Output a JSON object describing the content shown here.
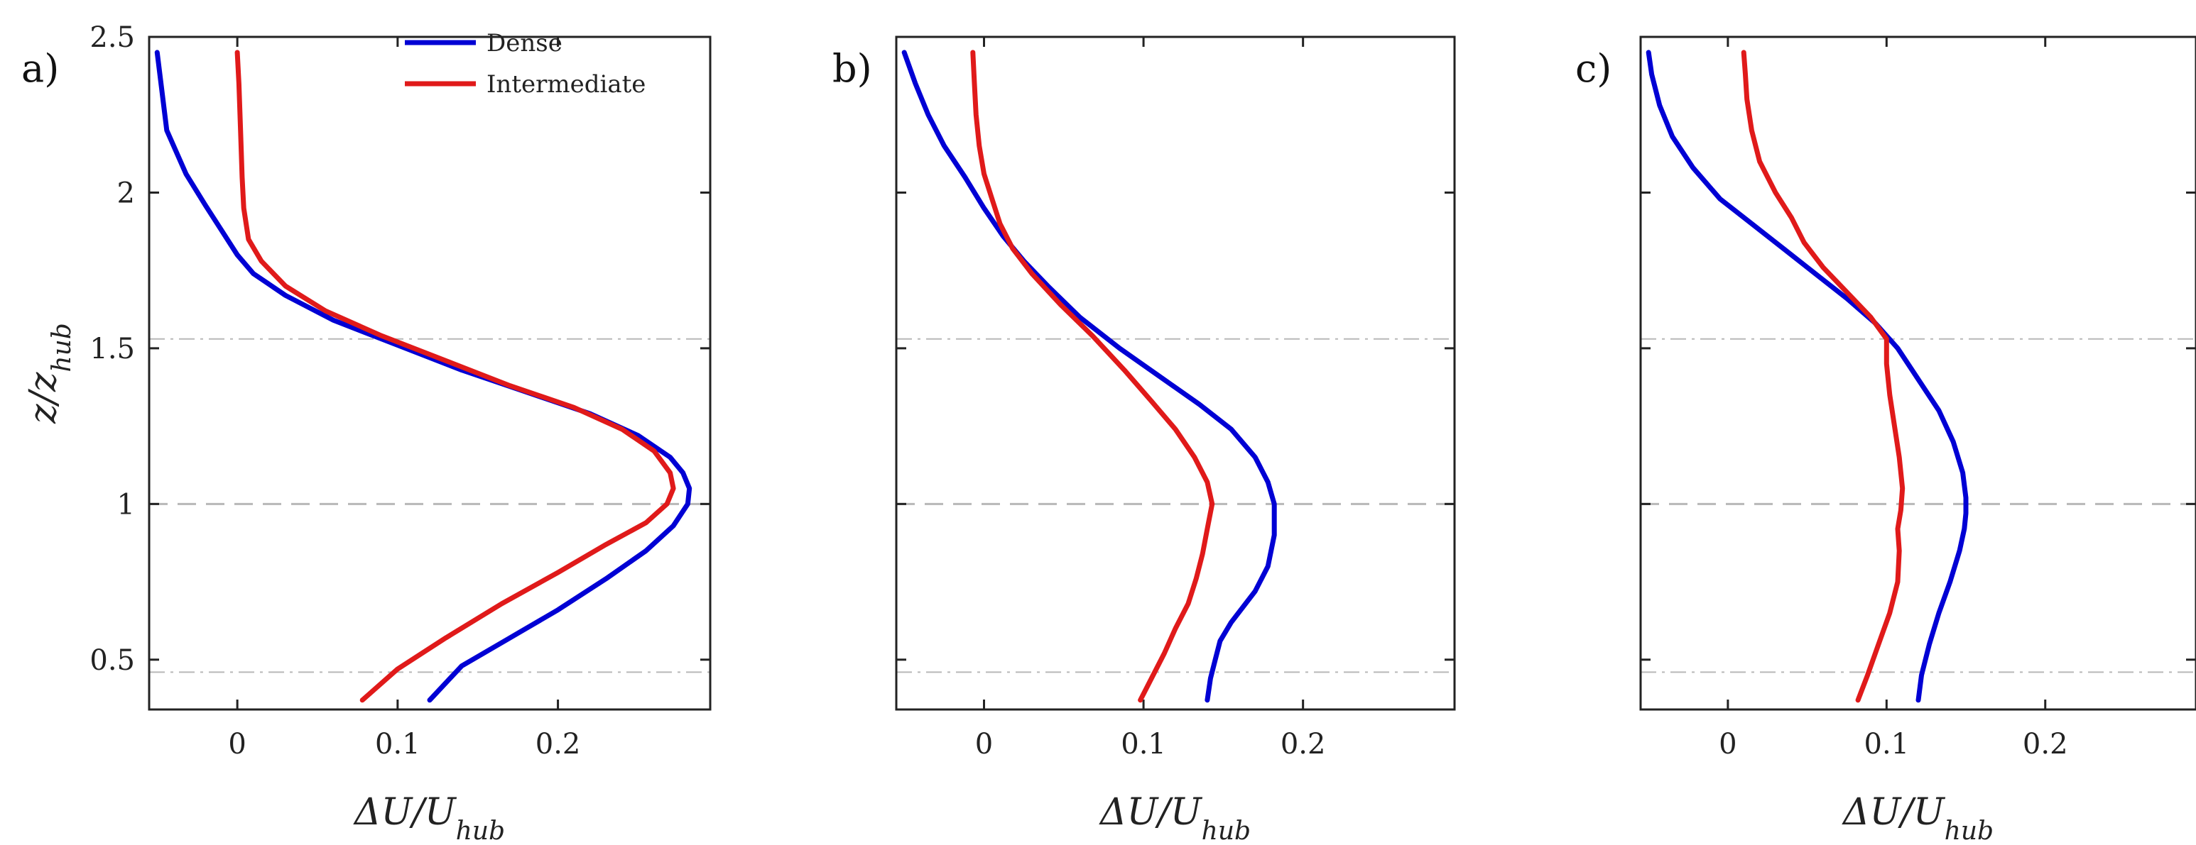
{
  "chart_data": [
    {
      "type": "line",
      "panel_label": "a)",
      "xlabel": "ΔU/U_hub",
      "ylabel": "z/z_hub",
      "xlim": [
        -0.055,
        0.295
      ],
      "ylim": [
        0.34,
        2.5
      ],
      "xticks": [
        0,
        0.1,
        0.2
      ],
      "xtick_labels": [
        "0",
        "0.1",
        "0.2"
      ],
      "yticks": [
        0.5,
        1,
        1.5,
        2,
        2.5
      ],
      "ytick_labels": [
        "0.5",
        "1",
        "1.5",
        "2",
        "2.5"
      ],
      "reference_lines": [
        {
          "y": 0.46,
          "style": "dash-dot"
        },
        {
          "y": 1.0,
          "style": "dashed"
        },
        {
          "y": 1.53,
          "style": "dash-dot"
        }
      ],
      "legend": {
        "entries": [
          "Dense",
          "Intermediate"
        ],
        "location": "top-right"
      },
      "series": [
        {
          "name": "Dense",
          "color": "#0000d4",
          "x": [
            0.12,
            0.14,
            0.17,
            0.2,
            0.23,
            0.255,
            0.272,
            0.281,
            0.282,
            0.278,
            0.27,
            0.25,
            0.22,
            0.18,
            0.14,
            0.1,
            0.06,
            0.03,
            0.01,
            0.0,
            -0.01,
            -0.02,
            -0.032,
            -0.044,
            -0.05
          ],
          "y": [
            0.37,
            0.48,
            0.57,
            0.66,
            0.76,
            0.85,
            0.93,
            1.0,
            1.05,
            1.1,
            1.15,
            1.22,
            1.29,
            1.36,
            1.43,
            1.51,
            1.59,
            1.67,
            1.74,
            1.8,
            1.88,
            1.96,
            2.06,
            2.2,
            2.45
          ]
        },
        {
          "name": "Intermediate",
          "color": "#e01a1a",
          "x": [
            0.078,
            0.1,
            0.13,
            0.165,
            0.2,
            0.23,
            0.255,
            0.268,
            0.272,
            0.27,
            0.26,
            0.24,
            0.21,
            0.17,
            0.13,
            0.09,
            0.055,
            0.03,
            0.015,
            0.007,
            0.004,
            0.003,
            0.002,
            0.001,
            0.0
          ],
          "y": [
            0.37,
            0.47,
            0.57,
            0.68,
            0.78,
            0.87,
            0.94,
            1.0,
            1.05,
            1.1,
            1.17,
            1.24,
            1.31,
            1.38,
            1.46,
            1.54,
            1.62,
            1.7,
            1.78,
            1.85,
            1.95,
            2.05,
            2.2,
            2.35,
            2.45
          ]
        }
      ]
    },
    {
      "type": "line",
      "panel_label": "b)",
      "xlabel": "ΔU/U_hub",
      "ylabel": "",
      "xlim": [
        -0.055,
        0.295
      ],
      "ylim": [
        0.34,
        2.5
      ],
      "xticks": [
        0,
        0.1,
        0.2
      ],
      "xtick_labels": [
        "0",
        "0.1",
        "0.2"
      ],
      "yticks": [
        0.5,
        1,
        1.5,
        2,
        2.5
      ],
      "ytick_labels": [],
      "reference_lines": [
        {
          "y": 0.46,
          "style": "dash-dot"
        },
        {
          "y": 1.0,
          "style": "dashed"
        },
        {
          "y": 1.53,
          "style": "dash-dot"
        }
      ],
      "series": [
        {
          "name": "Dense",
          "color": "#0000d4",
          "x": [
            0.14,
            0.142,
            0.145,
            0.148,
            0.155,
            0.17,
            0.178,
            0.182,
            0.182,
            0.178,
            0.17,
            0.155,
            0.135,
            0.11,
            0.085,
            0.06,
            0.04,
            0.025,
            0.012,
            0.0,
            -0.012,
            -0.025,
            -0.035,
            -0.043,
            -0.05
          ],
          "y": [
            0.37,
            0.44,
            0.5,
            0.56,
            0.62,
            0.72,
            0.8,
            0.9,
            1.0,
            1.07,
            1.15,
            1.24,
            1.32,
            1.41,
            1.5,
            1.6,
            1.7,
            1.78,
            1.86,
            1.95,
            2.05,
            2.15,
            2.25,
            2.35,
            2.45
          ]
        },
        {
          "name": "Intermediate",
          "color": "#e01a1a",
          "x": [
            0.098,
            0.105,
            0.113,
            0.12,
            0.128,
            0.133,
            0.137,
            0.14,
            0.143,
            0.14,
            0.132,
            0.12,
            0.105,
            0.088,
            0.068,
            0.048,
            0.03,
            0.018,
            0.01,
            0.005,
            0.0,
            -0.003,
            -0.005,
            -0.006,
            -0.007
          ],
          "y": [
            0.37,
            0.44,
            0.52,
            0.6,
            0.68,
            0.76,
            0.84,
            0.92,
            1.0,
            1.07,
            1.15,
            1.24,
            1.33,
            1.43,
            1.54,
            1.64,
            1.74,
            1.82,
            1.9,
            1.98,
            2.06,
            2.15,
            2.25,
            2.35,
            2.45
          ]
        }
      ]
    },
    {
      "type": "line",
      "panel_label": "c)",
      "xlabel": "ΔU/U_hub",
      "ylabel": "",
      "xlim": [
        -0.055,
        0.295
      ],
      "ylim": [
        0.34,
        2.5
      ],
      "xticks": [
        0,
        0.1,
        0.2
      ],
      "xtick_labels": [
        "0",
        "0.1",
        "0.2"
      ],
      "yticks": [
        0.5,
        1,
        1.5,
        2,
        2.5
      ],
      "ytick_labels": [],
      "reference_lines": [
        {
          "y": 0.46,
          "style": "dash-dot"
        },
        {
          "y": 1.0,
          "style": "dashed"
        },
        {
          "y": 1.53,
          "style": "dash-dot"
        }
      ],
      "series": [
        {
          "name": "Dense",
          "color": "#0000d4",
          "x": [
            0.12,
            0.122,
            0.127,
            0.133,
            0.14,
            0.146,
            0.149,
            0.15,
            0.15,
            0.148,
            0.142,
            0.133,
            0.12,
            0.107,
            0.093,
            0.075,
            0.055,
            0.035,
            0.015,
            -0.005,
            -0.022,
            -0.035,
            -0.043,
            -0.048,
            -0.05
          ],
          "y": [
            0.37,
            0.45,
            0.55,
            0.65,
            0.75,
            0.85,
            0.92,
            0.97,
            1.02,
            1.1,
            1.2,
            1.3,
            1.4,
            1.5,
            1.58,
            1.66,
            1.74,
            1.82,
            1.9,
            1.98,
            2.08,
            2.18,
            2.28,
            2.38,
            2.45
          ]
        },
        {
          "name": "Intermediate",
          "color": "#e01a1a",
          "x": [
            0.082,
            0.088,
            0.095,
            0.102,
            0.107,
            0.108,
            0.107,
            0.109,
            0.11,
            0.108,
            0.105,
            0.102,
            0.1,
            0.1,
            0.09,
            0.075,
            0.06,
            0.048,
            0.04,
            0.03,
            0.02,
            0.015,
            0.012,
            0.011,
            0.01
          ],
          "y": [
            0.37,
            0.45,
            0.55,
            0.65,
            0.75,
            0.85,
            0.92,
            0.98,
            1.05,
            1.15,
            1.25,
            1.35,
            1.45,
            1.53,
            1.6,
            1.68,
            1.76,
            1.84,
            1.92,
            2.0,
            2.1,
            2.2,
            2.3,
            2.38,
            2.45
          ]
        }
      ]
    }
  ]
}
